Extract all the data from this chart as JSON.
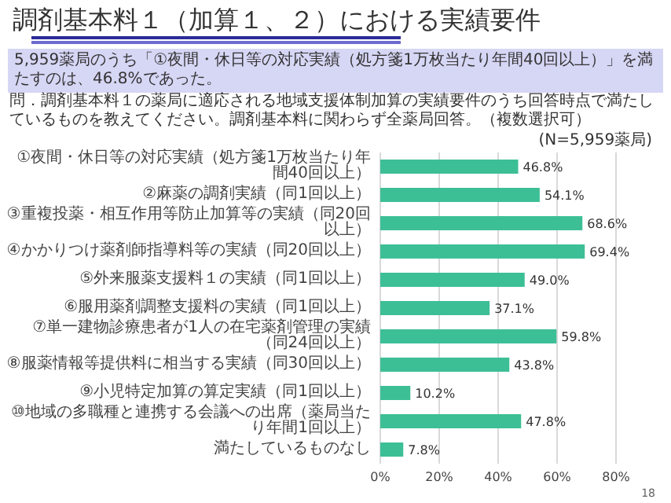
{
  "chart_data": {
    "type": "bar",
    "orientation": "horizontal",
    "title": "調剤基本料１（加算１、２）における実績要件",
    "subtitle": "5,959薬局のうち「①夜間・休日等の対応実績（処方箋1万枚当たり年間40回以上）」を満たすのは、46.8%であった。",
    "annotations": [
      "問．調剤基本料１の薬局に適応される地域支援体制加算の実績要件のうち回答時点で満たしているものを教えてください。調剤基本料に関わらず全薬局回答。（複数選択可）",
      "(N=5,959薬局)",
      "18"
    ],
    "categories": [
      "①夜間・休日等の対応実績（処方箋1万枚当たり年間40回以上）",
      "②麻薬の調剤実績（同1回以上）",
      "③重複投薬・相互作用等防止加算等の実績（同20回以上）",
      "④かかりつけ薬剤師指導料等の実績（同20回以上）",
      "⑤外来服薬支援料１の実績（同1回以上）",
      "⑥服用薬剤調整支援料の実績（同1回以上）",
      "⑦単一建物診療患者が1人の在宅薬剤管理の実績（同24回以上）",
      "⑧服薬情報等提供料に相当する実績（同30回以上）",
      "⑨小児特定加算の算定実績（同1回以上）",
      "⑩地域の多職種と連携する会議への出席（薬局当たり年間1回以上）",
      "満たしているものなし"
    ],
    "values": [
      46.8,
      54.1,
      68.6,
      69.4,
      49.0,
      37.1,
      59.8,
      43.8,
      10.2,
      47.8,
      7.8
    ],
    "value_labels": [
      "46.8%",
      "54.1%",
      "68.6%",
      "69.4%",
      "49.0%",
      "37.1%",
      "59.8%",
      "43.8%",
      "10.2%",
      "47.8%",
      "7.8%"
    ],
    "color": "#3dbf96",
    "xlim": [
      0,
      80
    ],
    "xticks": [
      {
        "value": 0,
        "label": "0%"
      },
      {
        "value": 20,
        "label": "20%"
      },
      {
        "value": 40,
        "label": "40%"
      },
      {
        "value": 60,
        "label": "60%"
      },
      {
        "value": 80,
        "label": "80%"
      }
    ],
    "grid": "x"
  }
}
